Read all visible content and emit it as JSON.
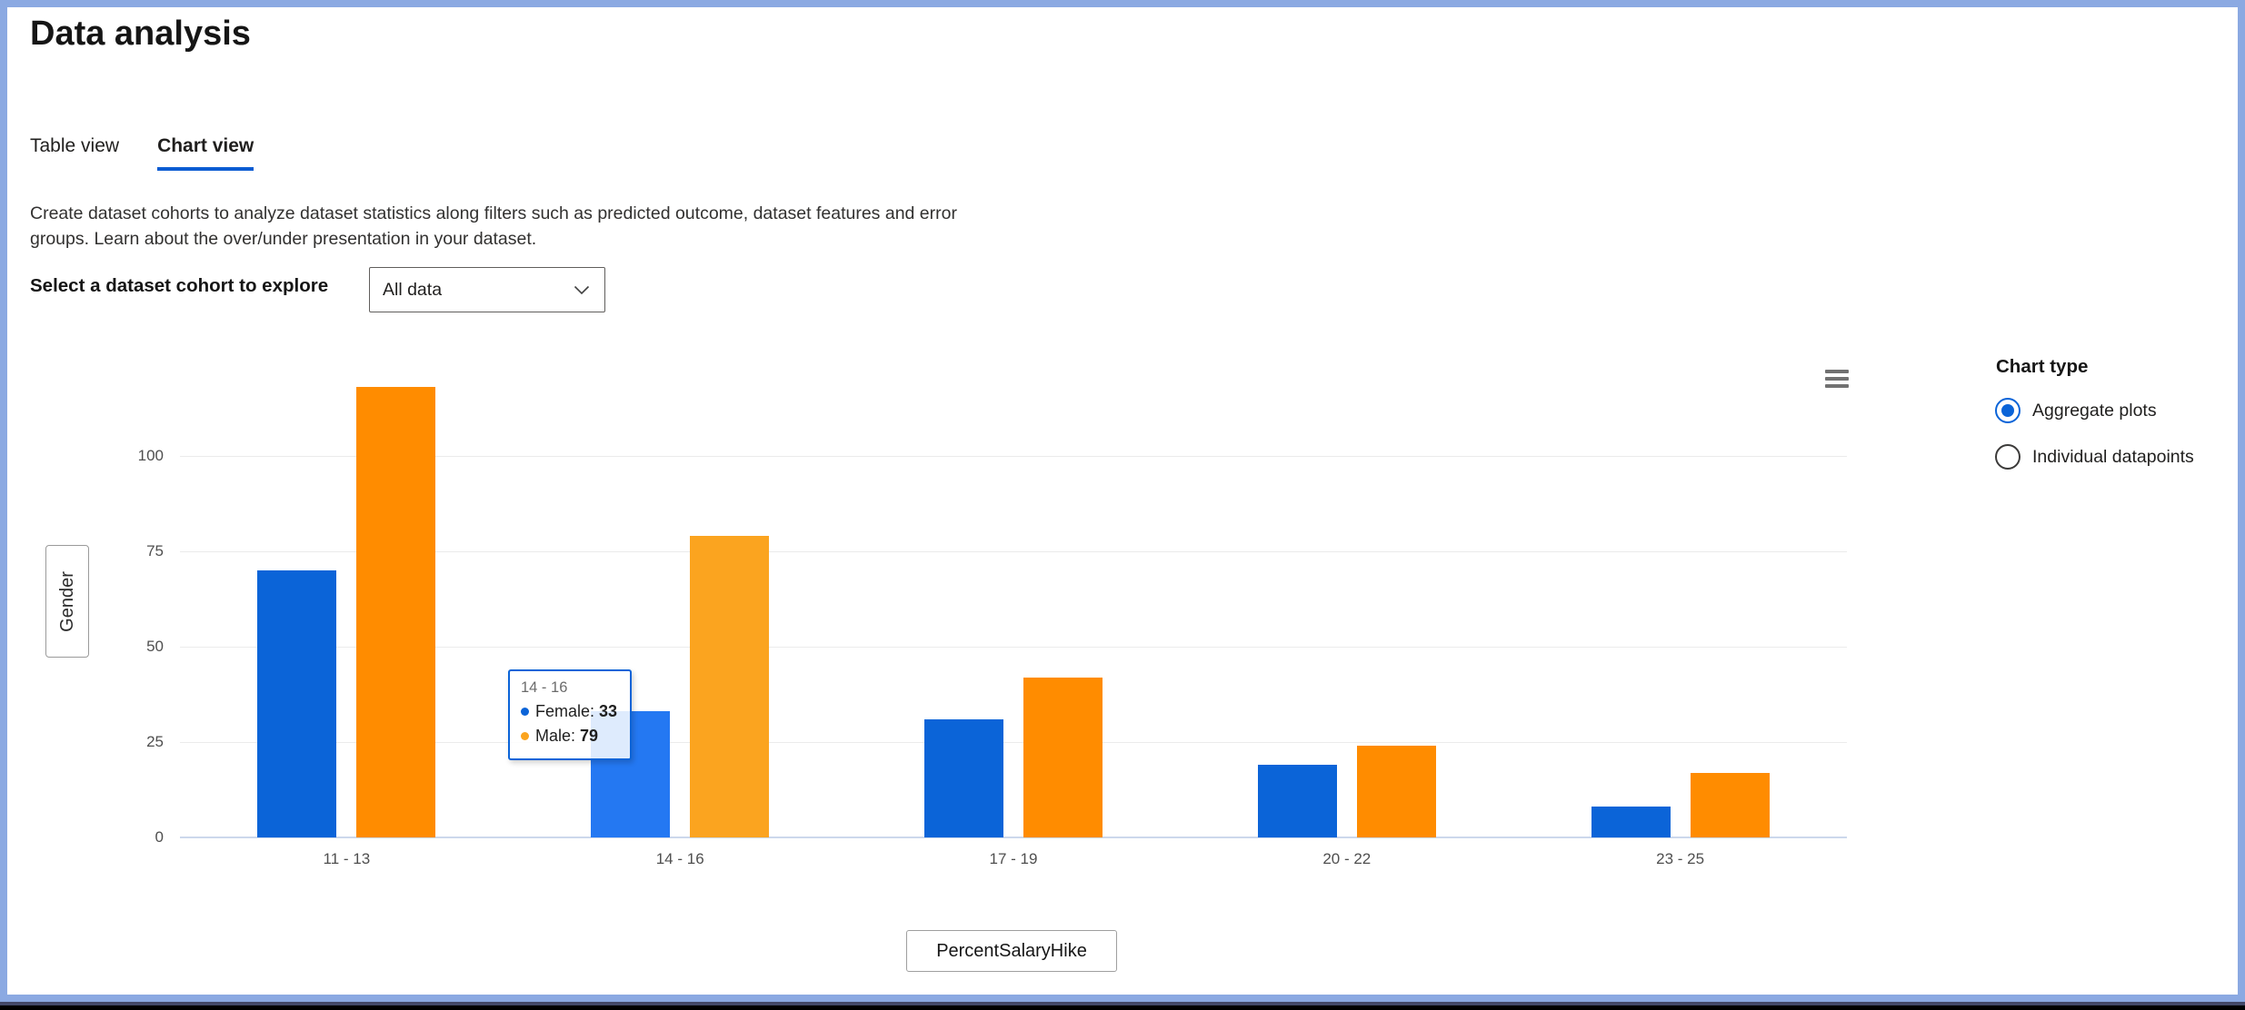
{
  "header": {
    "title": "Data analysis"
  },
  "tabs": [
    {
      "label": "Table view",
      "active": false
    },
    {
      "label": "Chart view",
      "active": true
    }
  ],
  "description": {
    "line1": "Create dataset cohorts to analyze dataset statistics along filters such as predicted outcome, dataset features and error",
    "line2": "groups. Learn about the over/under presentation in your dataset."
  },
  "cohort_selector": {
    "label": "Select a dataset cohort to explore",
    "value": "All data",
    "chevron_icon": "chevron-down-icon"
  },
  "chart_panel": {
    "menu_icon": "hamburger-menu-icon"
  },
  "chart_type": {
    "label": "Chart type",
    "options": [
      {
        "label": "Aggregate plots",
        "selected": true
      },
      {
        "label": "Individual datapoints",
        "selected": false
      }
    ]
  },
  "chart_data": {
    "type": "bar",
    "categories": [
      "11 - 13",
      "14 - 16",
      "17 - 19",
      "20 - 22",
      "23 - 25"
    ],
    "series": [
      {
        "name": "Female",
        "color": "#0b64d8",
        "hover_color": "#2478f2",
        "values": [
          70,
          33,
          31,
          19,
          8
        ]
      },
      {
        "name": "Male",
        "color": "#ff8c00",
        "hover_color": "#fba41f",
        "values": [
          118,
          79,
          42,
          24,
          17
        ]
      }
    ],
    "highlighted_category_index": 1,
    "yticks": [
      0,
      25,
      50,
      75,
      100
    ],
    "ylim": [
      0,
      125
    ],
    "ylabel": "Gender",
    "xlabel": "PercentSalaryHike",
    "grid": true,
    "legend_position": "none",
    "grid_color": "#ebebeb",
    "axis_line_color": "#ccd8ec"
  },
  "tooltip": {
    "title": "14 - 16",
    "items": [
      {
        "label": "Female:",
        "value": "33",
        "color": "#0b64d8"
      },
      {
        "label": "Male:",
        "value": "79",
        "color": "#fba41f"
      }
    ]
  },
  "window": {
    "border_color": "#8ba9e2"
  }
}
